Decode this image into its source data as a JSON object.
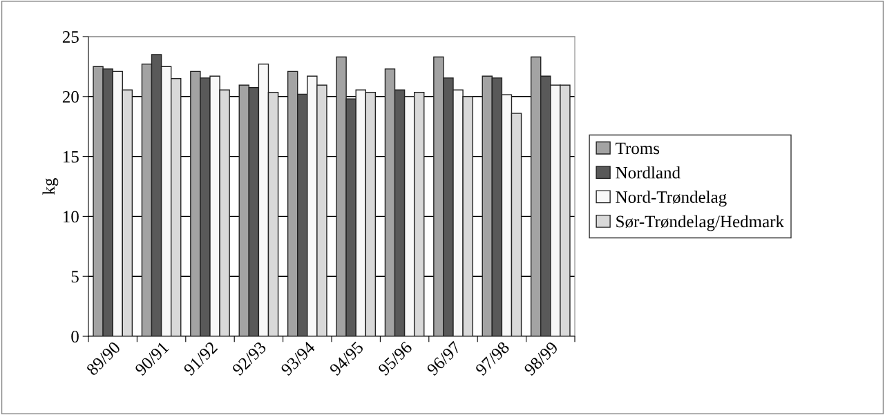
{
  "chart_data": {
    "type": "bar",
    "ylabel": "kg",
    "categories": [
      "89/90",
      "90/91",
      "91/92",
      "92/93",
      "93/94",
      "94/95",
      "95/96",
      "96/97",
      "97/98",
      "98/99"
    ],
    "series": [
      {
        "name": "Troms",
        "color": "#a3a3a3",
        "values": [
          22.5,
          22.7,
          22.1,
          20.95,
          22.1,
          23.3,
          22.3,
          23.3,
          21.7,
          23.3
        ]
      },
      {
        "name": "Nordland",
        "color": "#595959",
        "values": [
          22.3,
          23.5,
          21.55,
          20.75,
          20.2,
          19.8,
          20.55,
          21.55,
          21.55,
          21.7
        ]
      },
      {
        "name": "Nord-Trøndelag",
        "color": "#f8f8f8",
        "values": [
          22.1,
          22.5,
          21.7,
          22.7,
          21.7,
          20.55,
          20.0,
          20.55,
          20.15,
          20.95
        ]
      },
      {
        "name": "Sør-Trøndelag/Hedmark",
        "color": "#d9d9d9",
        "values": [
          20.55,
          21.5,
          20.55,
          20.35,
          20.95,
          20.35,
          20.35,
          20.0,
          18.6,
          20.95
        ]
      }
    ],
    "ylim": [
      0,
      25
    ],
    "yticks": [
      0,
      5,
      10,
      15,
      20,
      25
    ],
    "grid": "y",
    "legend": "right"
  }
}
